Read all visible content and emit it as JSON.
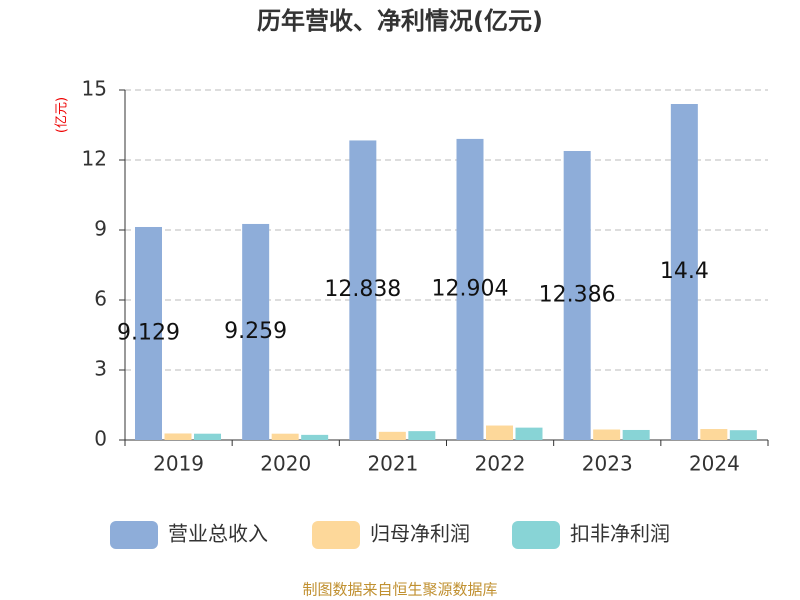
{
  "chart_data": {
    "type": "bar",
    "title": "历年营收、净利情况(亿元)",
    "y_unit": "(亿元)",
    "source": "制图数据来自恒生聚源数据库",
    "categories": [
      "2019",
      "2020",
      "2021",
      "2022",
      "2023",
      "2024"
    ],
    "series": [
      {
        "name": "营业总收入",
        "color": "#8eadd9",
        "values": [
          9.129,
          9.259,
          12.838,
          12.904,
          12.386,
          14.4
        ],
        "show_labels": true
      },
      {
        "name": "归母净利润",
        "color": "#fdd89a",
        "values": [
          0.28,
          0.27,
          0.35,
          0.62,
          0.45,
          0.47
        ]
      },
      {
        "name": "扣非净利润",
        "color": "#88d4d6",
        "values": [
          0.27,
          0.22,
          0.38,
          0.53,
          0.43,
          0.42
        ]
      }
    ],
    "ylim": [
      0,
      15
    ],
    "yticks": [
      0,
      3,
      6,
      9,
      12,
      15
    ],
    "grid": true
  }
}
